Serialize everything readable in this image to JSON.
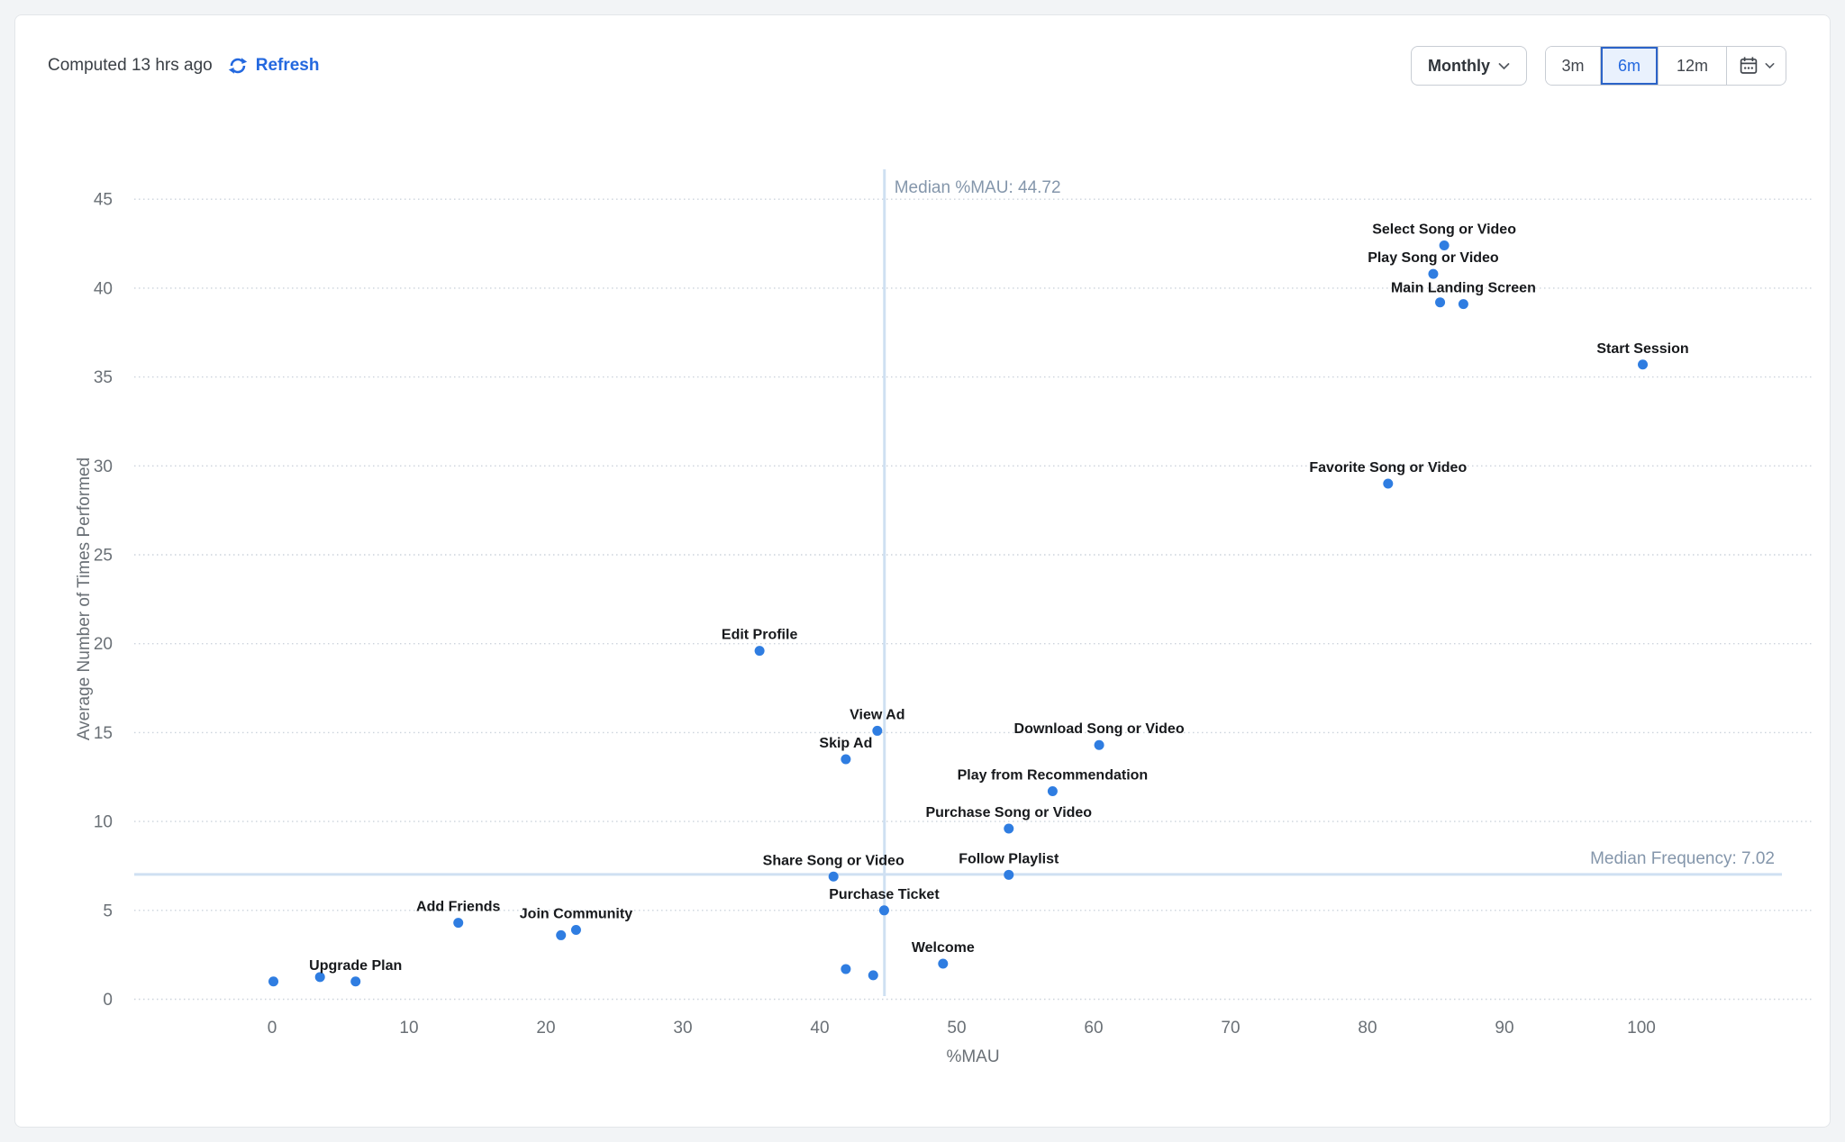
{
  "header": {
    "computed_text": "Computed 13 hrs ago",
    "refresh_label": "Refresh",
    "interval_selector": {
      "label": "Monthly"
    },
    "range_options": [
      "3m",
      "6m",
      "12m"
    ],
    "selected_range": "6m"
  },
  "colors": {
    "accent": "#2368df",
    "point": "#2f7de1",
    "median_line": "#cfe0f2",
    "median_label": "#8496ab",
    "selected_range_bg": "#e9f1fd",
    "selected_range_border": "#2b63c8"
  },
  "chart_data": {
    "type": "scatter",
    "xlabel": "%MAU",
    "ylabel": "Average Number of Times Performed",
    "x_ticks": [
      0,
      10,
      20,
      30,
      40,
      50,
      60,
      70,
      80,
      90,
      100
    ],
    "y_ticks": [
      0,
      5,
      10,
      15,
      20,
      25,
      30,
      35,
      40,
      45
    ],
    "xlim": [
      -10,
      112.5
    ],
    "ylim": [
      0,
      47
    ],
    "grid": true,
    "median_x": {
      "value": 44.72,
      "label": "Median %MAU: 44.72"
    },
    "median_y": {
      "value": 7.02,
      "label": "Median Frequency: 7.02"
    },
    "points": [
      {
        "label": "Select Song or Video",
        "x": 85.6,
        "y": 42.4
      },
      {
        "label": "Play Song or Video",
        "x": 84.8,
        "y": 40.8
      },
      {
        "label": "",
        "x": 85.3,
        "y": 39.2
      },
      {
        "label": "Main Landing Screen",
        "x": 87.0,
        "y": 39.1
      },
      {
        "label": "Start Session",
        "x": 100.1,
        "y": 35.7
      },
      {
        "label": "Favorite Song or Video",
        "x": 81.5,
        "y": 29.0
      },
      {
        "label": "Edit Profile",
        "x": 35.6,
        "y": 19.6
      },
      {
        "label": "View Ad",
        "x": 44.2,
        "y": 15.1
      },
      {
        "label": "Download Song or Video",
        "x": 60.4,
        "y": 14.3
      },
      {
        "label": "Skip Ad",
        "x": 41.9,
        "y": 13.5
      },
      {
        "label": "Play from Recommendation",
        "x": 57.0,
        "y": 11.7
      },
      {
        "label": "Purchase Song or Video",
        "x": 53.8,
        "y": 9.6
      },
      {
        "label": "Follow Playlist",
        "x": 53.8,
        "y": 7.0
      },
      {
        "label": "Share Song or Video",
        "x": 41.0,
        "y": 6.9
      },
      {
        "label": "Purchase Ticket",
        "x": 44.7,
        "y": 5.0
      },
      {
        "label": "Add Friends",
        "x": 13.6,
        "y": 4.3
      },
      {
        "label": "Join Community",
        "x": 22.2,
        "y": 3.9
      },
      {
        "label": "",
        "x": 21.1,
        "y": 3.6
      },
      {
        "label": "Welcome",
        "x": 49.0,
        "y": 2.0
      },
      {
        "label": "",
        "x": 41.9,
        "y": 1.7
      },
      {
        "label": "",
        "x": 43.9,
        "y": 1.35
      },
      {
        "label": "",
        "x": 3.5,
        "y": 1.25
      },
      {
        "label": "Upgrade Plan",
        "x": 6.1,
        "y": 1.0
      },
      {
        "label": "",
        "x": 0.1,
        "y": 1.0
      }
    ]
  }
}
